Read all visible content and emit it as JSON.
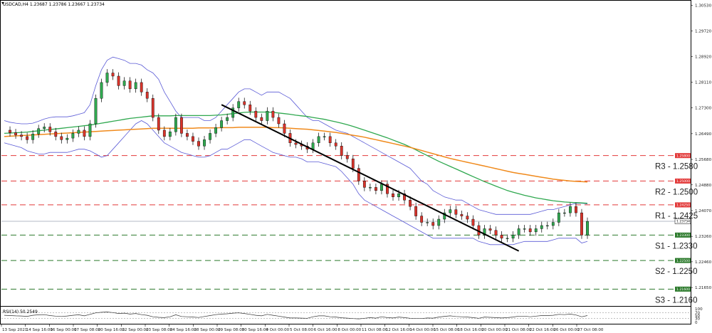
{
  "chart_data": {
    "type": "candlestick",
    "symbol_header": "USDCAD,H4  1.23687 1.23786 1.23667 1.23734",
    "current_price": "1.23734",
    "current_price_value": 1.23734,
    "ylim": [
      1.2107,
      1.3065
    ],
    "y_ticks": [
      "1.30530",
      "1.29720",
      "1.28920",
      "1.28110",
      "1.27300",
      "1.26490",
      "1.25680",
      "1.24880",
      "1.24070",
      "1.23260",
      "1.22460",
      "1.21650"
    ],
    "x_ticks": [
      "13 Sep 2021",
      "14 Sep 16:00",
      "16 Sep 00:00",
      "17 Sep 08:00",
      "20 Sep 16:00",
      "22 Sep 00:00",
      "23 Sep 08:00",
      "24 Sep 16:00",
      "28 Sep 00:00",
      "29 Sep 08:00",
      "30 Sep 16:00",
      "4 Oct 00:00",
      "5 Oct 08:00",
      "6 Oct 16:00",
      "8 Oct 00:00",
      "11 Oct 08:00",
      "12 Oct 16:00",
      "14 Oct 00:00",
      "15 Oct 08:00",
      "18 Oct 16:00",
      "20 Oct 00:00",
      "21 Oct 08:00",
      "22 Oct 16:00",
      "26 Oct 00:00",
      "27 Oct 08:00"
    ],
    "levels": [
      {
        "label": "R3 - 1.2580",
        "value": 1.258,
        "tag": "1.25800",
        "color": "#e23a3a",
        "kind": "resistance"
      },
      {
        "label": "R2 - 1.2500",
        "value": 1.25,
        "tag": "1.25000",
        "color": "#e23a3a",
        "kind": "resistance"
      },
      {
        "label": "R1 - 1.2425",
        "value": 1.2425,
        "tag": "1.24250",
        "color": "#e23a3a",
        "kind": "resistance"
      },
      {
        "label": "S1 - 1.2330",
        "value": 1.233,
        "tag": "1.23300",
        "color": "#2c7a2c",
        "kind": "support"
      },
      {
        "label": "S2 - 1.2250",
        "value": 1.225,
        "tag": "1.22500",
        "color": "#2c7a2c",
        "kind": "support"
      },
      {
        "label": "S3 - 1.2160",
        "value": 1.216,
        "tag": "1.21600",
        "color": "#2c7a2c",
        "kind": "support"
      }
    ],
    "close_series": [
      1.266,
      1.2652,
      1.2645,
      1.264,
      1.263,
      1.2648,
      1.2665,
      1.267,
      1.2655,
      1.264,
      1.263,
      1.2635,
      1.265,
      1.266,
      1.264,
      1.268,
      1.276,
      1.281,
      1.284,
      1.283,
      1.28,
      1.2815,
      1.279,
      1.281,
      1.278,
      1.276,
      1.27,
      1.266,
      1.264,
      1.2655,
      1.27,
      1.265,
      1.264,
      1.2625,
      1.261,
      1.263,
      1.265,
      1.2668,
      1.269,
      1.27,
      1.273,
      1.275,
      1.274,
      1.272,
      1.27,
      1.269,
      1.272,
      1.27,
      1.268,
      1.265,
      1.262,
      1.2615,
      1.261,
      1.26,
      1.262,
      1.264,
      1.264,
      1.262,
      1.261,
      1.258,
      1.257,
      1.254,
      1.25,
      1.248,
      1.248,
      1.247,
      1.249,
      1.246,
      1.245,
      1.246,
      1.244,
      1.242,
      1.239,
      1.237,
      1.237,
      1.236,
      1.238,
      1.24,
      1.241,
      1.2395,
      1.239,
      1.238,
      1.236,
      1.233,
      1.235,
      1.2345,
      1.233,
      1.232,
      1.232,
      1.233,
      1.235,
      1.235,
      1.234,
      1.235,
      1.236,
      1.236,
      1.237,
      1.24,
      1.24,
      1.242,
      1.24,
      1.233,
      1.2373
    ],
    "sma_green": [
      1.265,
      1.2651,
      1.2652,
      1.2653,
      1.2654,
      1.2656,
      1.2658,
      1.266,
      1.2662,
      1.2664,
      1.2666,
      1.2668,
      1.267,
      1.2672,
      1.2674,
      1.2676,
      1.2679,
      1.2682,
      1.2685,
      1.2688,
      1.2691,
      1.2694,
      1.2697,
      1.2699,
      1.2701,
      1.2703,
      1.2705,
      1.2705,
      1.2705,
      1.2705,
      1.2706,
      1.2706,
      1.2706,
      1.2706,
      1.2706,
      1.2706,
      1.2706,
      1.2707,
      1.2708,
      1.271,
      1.2712,
      1.2714,
      1.2716,
      1.2717,
      1.2717,
      1.2717,
      1.2717,
      1.2716,
      1.2714,
      1.2712,
      1.271,
      1.2707,
      1.2705,
      1.2703,
      1.27,
      1.2697,
      1.2694,
      1.269,
      1.2686,
      1.2682,
      1.2677,
      1.2672,
      1.2666,
      1.266,
      1.2654,
      1.2648,
      1.2642,
      1.2636,
      1.2629,
      1.2622,
      1.2615,
      1.2607,
      1.2598,
      1.2589,
      1.258,
      1.2571,
      1.2562,
      1.2554,
      1.2546,
      1.2538,
      1.253,
      1.2522,
      1.2514,
      1.2506,
      1.2498,
      1.2491,
      1.2484,
      1.2477,
      1.247,
      1.2465,
      1.246,
      1.2455,
      1.2451,
      1.2447,
      1.2444,
      1.2441,
      1.2438,
      1.2436,
      1.2434,
      1.2433,
      1.2432,
      1.2431,
      1.243
    ],
    "sma_orange": [
      1.264,
      1.2641,
      1.2642,
      1.2643,
      1.2644,
      1.2645,
      1.2646,
      1.2647,
      1.2648,
      1.2649,
      1.265,
      1.2651,
      1.2652,
      1.2653,
      1.2654,
      1.2655,
      1.2656,
      1.2657,
      1.2658,
      1.2659,
      1.266,
      1.2661,
      1.2662,
      1.2663,
      1.2664,
      1.2665,
      1.2666,
      1.2666,
      1.2666,
      1.2666,
      1.2666,
      1.2666,
      1.2666,
      1.2666,
      1.2667,
      1.2667,
      1.2667,
      1.2667,
      1.2668,
      1.2668,
      1.2668,
      1.2669,
      1.2669,
      1.2669,
      1.2669,
      1.2669,
      1.2669,
      1.2668,
      1.2668,
      1.2667,
      1.2666,
      1.2665,
      1.2664,
      1.2663,
      1.2661,
      1.2659,
      1.2657,
      1.2655,
      1.2653,
      1.265,
      1.2647,
      1.2644,
      1.2641,
      1.2638,
      1.2634,
      1.263,
      1.2626,
      1.2622,
      1.2618,
      1.2614,
      1.261,
      1.2606,
      1.2601,
      1.2596,
      1.2591,
      1.2586,
      1.2581,
      1.2576,
      1.2571,
      1.2567,
      1.2563,
      1.2559,
      1.2555,
      1.2551,
      1.2547,
      1.2543,
      1.2539,
      1.2535,
      1.2531,
      1.2527,
      1.2524,
      1.2521,
      1.2518,
      1.2515,
      1.2512,
      1.2509,
      1.2506,
      1.2504,
      1.2502,
      1.25,
      1.2499,
      1.2498,
      1.2497
    ],
    "bb_upper": [
      1.269,
      1.2685,
      1.2682,
      1.268,
      1.268,
      1.2682,
      1.2688,
      1.2695,
      1.27,
      1.2702,
      1.2702,
      1.2702,
      1.2705,
      1.271,
      1.2715,
      1.274,
      1.28,
      1.285,
      1.288,
      1.289,
      1.2885,
      1.288,
      1.287,
      1.287,
      1.2865,
      1.285,
      1.284,
      1.282,
      1.278,
      1.275,
      1.272,
      1.27,
      1.27,
      1.27,
      1.27,
      1.269,
      1.269,
      1.27,
      1.272,
      1.274,
      1.276,
      1.278,
      1.279,
      1.279,
      1.278,
      1.277,
      1.278,
      1.278,
      1.278,
      1.277,
      1.276,
      1.274,
      1.272,
      1.27,
      1.269,
      1.269,
      1.268,
      1.267,
      1.266,
      1.2655,
      1.265,
      1.264,
      1.263,
      1.262,
      1.261,
      1.26,
      1.259,
      1.258,
      1.257,
      1.256,
      1.255,
      1.254,
      1.252,
      1.25,
      1.249,
      1.247,
      1.246,
      1.245,
      1.2445,
      1.244,
      1.244,
      1.243,
      1.242,
      1.241,
      1.2405,
      1.24,
      1.2395,
      1.2395,
      1.2395,
      1.2395,
      1.2395,
      1.2395,
      1.2395,
      1.24,
      1.2405,
      1.241,
      1.241,
      1.2415,
      1.242,
      1.2425,
      1.243,
      1.243,
      1.2428
    ],
    "bb_lower": [
      1.262,
      1.2615,
      1.261,
      1.2605,
      1.2595,
      1.259,
      1.2585,
      1.2585,
      1.259,
      1.259,
      1.259,
      1.259,
      1.2595,
      1.26,
      1.26,
      1.2595,
      1.2585,
      1.2575,
      1.258,
      1.26,
      1.262,
      1.264,
      1.266,
      1.268,
      1.269,
      1.268,
      1.266,
      1.264,
      1.262,
      1.261,
      1.26,
      1.259,
      1.2585,
      1.258,
      1.2575,
      1.2575,
      1.258,
      1.259,
      1.26,
      1.26,
      1.261,
      1.262,
      1.263,
      1.263,
      1.262,
      1.261,
      1.26,
      1.259,
      1.2585,
      1.258,
      1.2575,
      1.2575,
      1.257,
      1.256,
      1.256,
      1.256,
      1.2555,
      1.255,
      1.2545,
      1.253,
      1.251,
      1.249,
      1.246,
      1.244,
      1.243,
      1.242,
      1.241,
      1.24,
      1.239,
      1.238,
      1.237,
      1.236,
      1.235,
      1.234,
      1.233,
      1.232,
      1.232,
      1.232,
      1.232,
      1.232,
      1.232,
      1.232,
      1.232,
      1.231,
      1.2305,
      1.23,
      1.23,
      1.23,
      1.23,
      1.23,
      1.2305,
      1.231,
      1.231,
      1.231,
      1.231,
      1.231,
      1.2315,
      1.232,
      1.232,
      1.232,
      1.232,
      1.2305,
      1.231
    ],
    "trendline": {
      "start": {
        "index": 38,
        "value": 1.274
      },
      "end": {
        "index": 90,
        "value": 1.228
      }
    },
    "rsi": {
      "label": "RSI(14) 50.2549",
      "ylim": [
        0,
        100
      ],
      "y_ticks": [
        "100",
        "70",
        "50",
        "30",
        "0"
      ],
      "levels": [
        30,
        70
      ],
      "values": [
        52,
        50,
        48,
        47,
        45,
        52,
        55,
        56,
        50,
        46,
        44,
        47,
        52,
        55,
        48,
        58,
        68,
        72,
        74,
        70,
        64,
        66,
        60,
        64,
        56,
        52,
        42,
        38,
        36,
        42,
        55,
        44,
        42,
        40,
        37,
        44,
        50,
        56,
        60,
        62,
        66,
        68,
        64,
        58,
        52,
        48,
        58,
        52,
        46,
        40,
        34,
        34,
        33,
        32,
        42,
        48,
        48,
        42,
        40,
        35,
        33,
        30,
        28,
        32,
        36,
        33,
        42,
        36,
        34,
        40,
        36,
        32,
        30,
        30,
        34,
        33,
        40,
        45,
        48,
        44,
        42,
        40,
        36,
        32,
        40,
        38,
        36,
        34,
        36,
        40,
        46,
        46,
        42,
        46,
        50,
        50,
        52,
        58,
        56,
        60,
        54,
        42,
        50
      ]
    }
  }
}
